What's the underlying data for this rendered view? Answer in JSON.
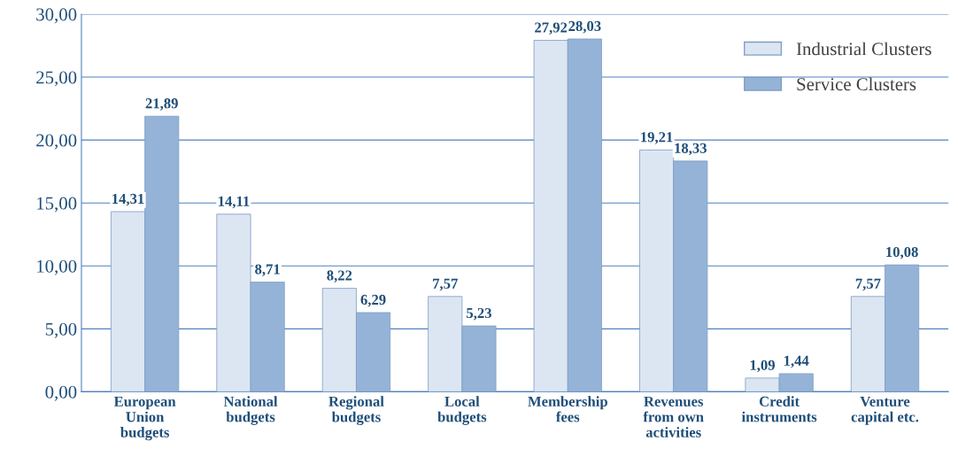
{
  "chart_data": {
    "type": "bar",
    "categories": [
      "European\nUnion\nbudgets",
      "National\nbudgets",
      "Regional\nbudgets",
      "Local\nbudgets",
      "Membership\nfees",
      "Revenues\nfrom own\nactivities",
      "Credit\ninstruments",
      "Venture\ncapital etc."
    ],
    "series": [
      {
        "name": "Industrial Clusters",
        "color": "#dce6f2",
        "values": [
          14.31,
          14.11,
          8.22,
          7.57,
          27.92,
          19.21,
          1.09,
          7.57
        ],
        "value_labels": [
          "14,31",
          "14,11",
          "8,22",
          "7,57",
          "27,92",
          "19,21",
          "1,09",
          "7,57"
        ]
      },
      {
        "name": "Service Clusters",
        "color": "#95b3d7",
        "values": [
          21.89,
          8.71,
          6.29,
          5.23,
          28.03,
          18.33,
          1.44,
          10.08
        ],
        "value_labels": [
          "21,89",
          "8,71",
          "6,29",
          "5,23",
          "28,03",
          "18,33",
          "1,44",
          "10,08"
        ]
      }
    ],
    "ylim": [
      0,
      30
    ],
    "yticks": [
      {
        "value": 0,
        "label": "0,00"
      },
      {
        "value": 5,
        "label": "5,00"
      },
      {
        "value": 10,
        "label": "10,00"
      },
      {
        "value": 15,
        "label": "15,00"
      },
      {
        "value": 20,
        "label": "20,00"
      },
      {
        "value": 25,
        "label": "25,00"
      },
      {
        "value": 30,
        "label": "30,00"
      }
    ],
    "grid": "y",
    "legend": "top right"
  }
}
